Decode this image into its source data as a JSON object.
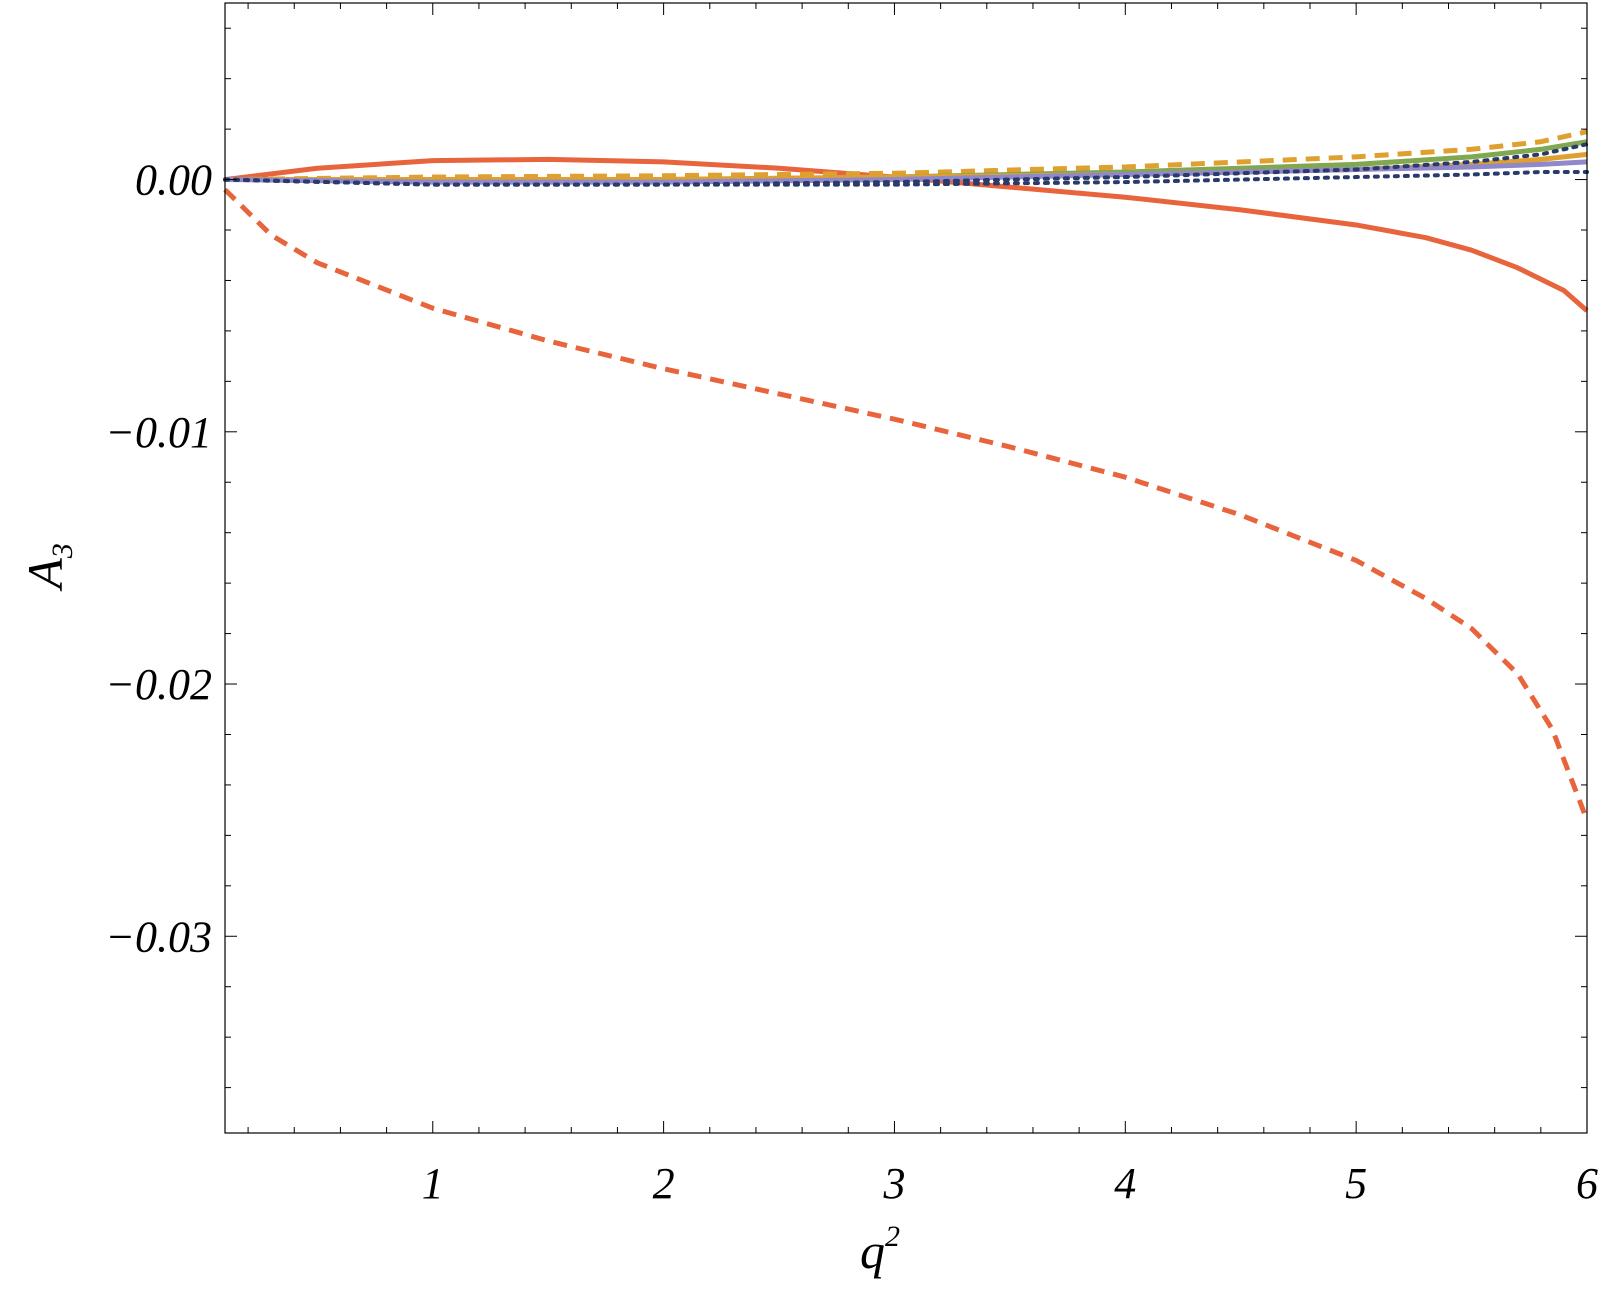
{
  "chart_data": {
    "type": "line",
    "xlabel_base": "q",
    "xlabel_sup": "2",
    "ylabel_base": "A",
    "ylabel_sub": "3",
    "xlim": [
      0.1,
      6
    ],
    "ylim": [
      -0.0378,
      0.007
    ],
    "xticks": [
      1,
      2,
      3,
      4,
      5,
      6
    ],
    "xtick_labels": [
      "1",
      "2",
      "3",
      "4",
      "5",
      "6"
    ],
    "yticks": [
      0.0,
      -0.01,
      -0.02,
      -0.03
    ],
    "ytick_labels": [
      "0.00",
      "−0.01",
      "−0.02",
      "−0.03"
    ],
    "grid": false,
    "legend": false,
    "colors": {
      "red": "#e8643c",
      "orange": "#e0a030",
      "green": "#80a850",
      "purple": "#9088c8",
      "navy": "#2a3a6a"
    },
    "series": [
      {
        "style": "solid",
        "color": "#e8643c",
        "x": [
          0.1,
          0.5,
          1.0,
          1.5,
          2.0,
          2.5,
          3.0,
          3.5,
          4.0,
          4.5,
          5.0,
          5.3,
          5.5,
          5.7,
          5.9,
          6.0
        ],
        "y": [
          0.0,
          0.00045,
          0.00075,
          0.0008,
          0.0007,
          0.00045,
          0.0001,
          -0.0003,
          -0.0007,
          -0.0012,
          -0.0018,
          -0.0023,
          -0.0028,
          -0.0035,
          -0.0044,
          -0.0052
        ]
      },
      {
        "style": "dashed",
        "color": "#e8643c",
        "x": [
          0.1,
          0.3,
          0.5,
          1.0,
          1.5,
          2.0,
          2.5,
          3.0,
          3.5,
          4.0,
          4.5,
          5.0,
          5.3,
          5.5,
          5.7,
          5.85,
          6.0
        ],
        "y": [
          -0.0004,
          -0.0022,
          -0.0033,
          -0.0051,
          -0.0064,
          -0.0075,
          -0.0085,
          -0.0095,
          -0.0106,
          -0.0118,
          -0.0133,
          -0.0151,
          -0.0166,
          -0.0178,
          -0.0196,
          -0.0218,
          -0.0254
        ]
      },
      {
        "style": "dashed",
        "color": "#e0a030",
        "x": [
          0.1,
          1.0,
          2.0,
          3.0,
          4.0,
          5.0,
          5.5,
          5.8,
          6.0
        ],
        "y": [
          0.0,
          0.0001,
          0.00015,
          0.00025,
          0.0005,
          0.0009,
          0.0012,
          0.0015,
          0.0019
        ]
      },
      {
        "style": "solid",
        "color": "#80a850",
        "x": [
          0.1,
          1.0,
          2.0,
          3.0,
          4.0,
          5.0,
          5.5,
          5.8,
          6.0
        ],
        "y": [
          0.0,
          0.0,
          0.0,
          0.0001,
          0.0003,
          0.0006,
          0.0009,
          0.0012,
          0.0015
        ]
      },
      {
        "style": "solid",
        "color": "#e0a030",
        "x": [
          0.1,
          1.0,
          2.0,
          3.0,
          4.0,
          5.0,
          5.5,
          5.8,
          6.0
        ],
        "y": [
          0.0,
          0.0,
          0.0,
          0.0001,
          0.0002,
          0.0004,
          0.0006,
          0.0008,
          0.001
        ]
      },
      {
        "style": "solid",
        "color": "#9088c8",
        "x": [
          0.1,
          1.0,
          2.0,
          3.0,
          4.0,
          5.0,
          5.5,
          5.8,
          6.0
        ],
        "y": [
          0.0,
          -0.0001,
          -0.0001,
          0.0,
          0.0002,
          0.0004,
          0.0005,
          0.0006,
          0.0007
        ]
      },
      {
        "style": "dotted",
        "color": "#2a3a6a",
        "x": [
          0.1,
          1.0,
          2.0,
          3.0,
          4.0,
          5.0,
          5.5,
          5.8,
          6.0
        ],
        "y": [
          0.0,
          -0.0002,
          -0.0002,
          -0.0001,
          0.0001,
          0.0004,
          0.0007,
          0.001,
          0.0014
        ]
      },
      {
        "style": "dotted",
        "color": "#2a3a6a",
        "x": [
          0.1,
          1.0,
          2.0,
          3.0,
          4.0,
          5.0,
          5.5,
          5.8,
          6.0
        ],
        "y": [
          0.0,
          -0.0002,
          -0.0002,
          -0.0002,
          -0.0001,
          0.0001,
          0.0002,
          0.0003,
          0.0003
        ]
      }
    ]
  }
}
